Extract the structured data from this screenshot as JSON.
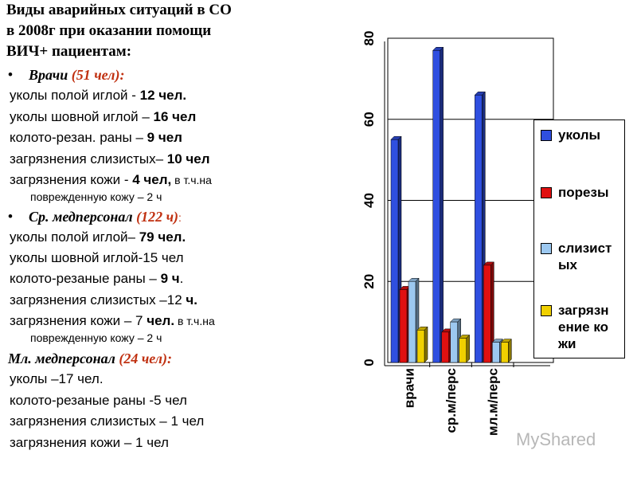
{
  "slide": {
    "title": [
      "Виды аварийных ситуаций в СО",
      "в 2008г при оказании помощи",
      "ВИЧ+ пациентам:"
    ],
    "lines": [
      [
        "Врачи",
        " (51 чел):"
      ],
      [
        "уколы полой иглой - ",
        "12 чел."
      ],
      [
        "уколы шовной иглой – ",
        "16 чел"
      ],
      [
        "колото-резан. раны – ",
        "9 чел"
      ],
      [
        "загрязнения слизистых– ",
        "10 чел"
      ],
      [
        "загрязнения кожи - ",
        "4 чел,",
        " в т.ч.на"
      ],
      [
        "поврежденную кожу – 2 ч"
      ],
      [
        "Ср. медперсонал",
        " (122 ч)",
        ":"
      ],
      [
        "уколы полой иглой– ",
        "79 чел."
      ],
      [
        "уколы шовной иглой-15 чел"
      ],
      [
        "колото-резаные раны – ",
        "9 ч",
        "."
      ],
      [
        "загрязнения слизистых –12 ",
        "ч."
      ],
      [
        "загрязнения кожи – 7 ",
        "чел.",
        " в т.ч.на"
      ],
      [
        "поврежденную кожу – 2 ч"
      ],
      [
        "Мл. медперсонал",
        " (24 чел):"
      ],
      [
        "уколы –17 чел."
      ],
      [
        "колото-резаные раны -5 чел"
      ],
      [
        "загрязнения слизистых – 1 чел"
      ],
      [
        "загрязнения кожи – 1 чел"
      ]
    ],
    "watermark": "MyShared"
  },
  "chart_data": {
    "type": "bar3d",
    "categories": [
      "врачи",
      "ср.м/перс",
      "мл.м/перс"
    ],
    "series": [
      {
        "name": "уколы",
        "color": "#2f4fe0",
        "values": [
          55,
          77,
          66
        ]
      },
      {
        "name": "порезы",
        "color": "#e01010",
        "values": [
          18,
          7.5,
          24
        ]
      },
      {
        "name": "слизистых",
        "color": "#9cc8f0",
        "values": [
          20,
          10,
          5
        ]
      },
      {
        "name": "загрязнение кожи",
        "color": "#f0d000",
        "values": [
          8,
          6,
          5
        ]
      }
    ],
    "ylim": [
      0,
      80
    ],
    "yticks": [
      0,
      20,
      40,
      60,
      80
    ],
    "grid": true
  }
}
